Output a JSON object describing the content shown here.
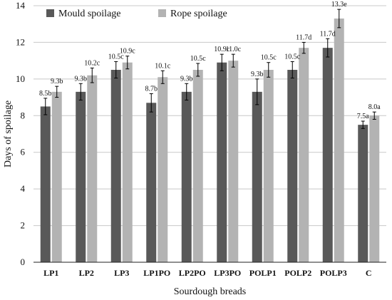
{
  "chart_data": {
    "type": "bar",
    "xlabel": "Sourdough breads",
    "ylabel": "Days of spoilage",
    "ylim": [
      0,
      14
    ],
    "yticks": [
      0,
      2,
      4,
      6,
      8,
      10,
      12,
      14
    ],
    "grid": true,
    "legend_position": "top-left",
    "categories": [
      "LP1",
      "LP2",
      "LP3",
      "LP1PO",
      "LP2PO",
      "LP3PO",
      "POLP1",
      "POLP2",
      "POLP3",
      "C"
    ],
    "series": [
      {
        "name": "Mould spoilage",
        "color": "#595959",
        "values": [
          8.5,
          9.3,
          10.5,
          8.7,
          9.3,
          10.9,
          9.3,
          10.5,
          11.7,
          7.5
        ],
        "errors": [
          0.45,
          0.45,
          0.45,
          0.5,
          0.45,
          0.45,
          0.7,
          0.45,
          0.5,
          0.2
        ],
        "labels": [
          "8.5b",
          "9.3b",
          "10.5c",
          "8.7b",
          "9.3b",
          "10.9c",
          "9.3b",
          "10.5c",
          "11.7d",
          "7.5a"
        ]
      },
      {
        "name": "Rope spoilage",
        "color": "#b3b3b3",
        "values": [
          9.3,
          10.2,
          10.9,
          10.1,
          10.5,
          11.0,
          10.5,
          11.7,
          13.3,
          8.0
        ],
        "errors": [
          0.3,
          0.4,
          0.35,
          0.35,
          0.35,
          0.35,
          0.4,
          0.3,
          0.5,
          0.2
        ],
        "labels": [
          "9.3b",
          "10.2c",
          "10.9c",
          "10.1c",
          "10.5c",
          "11.0c",
          "10.5c",
          "11.7d",
          "13.3e",
          "8.0a"
        ]
      }
    ]
  }
}
